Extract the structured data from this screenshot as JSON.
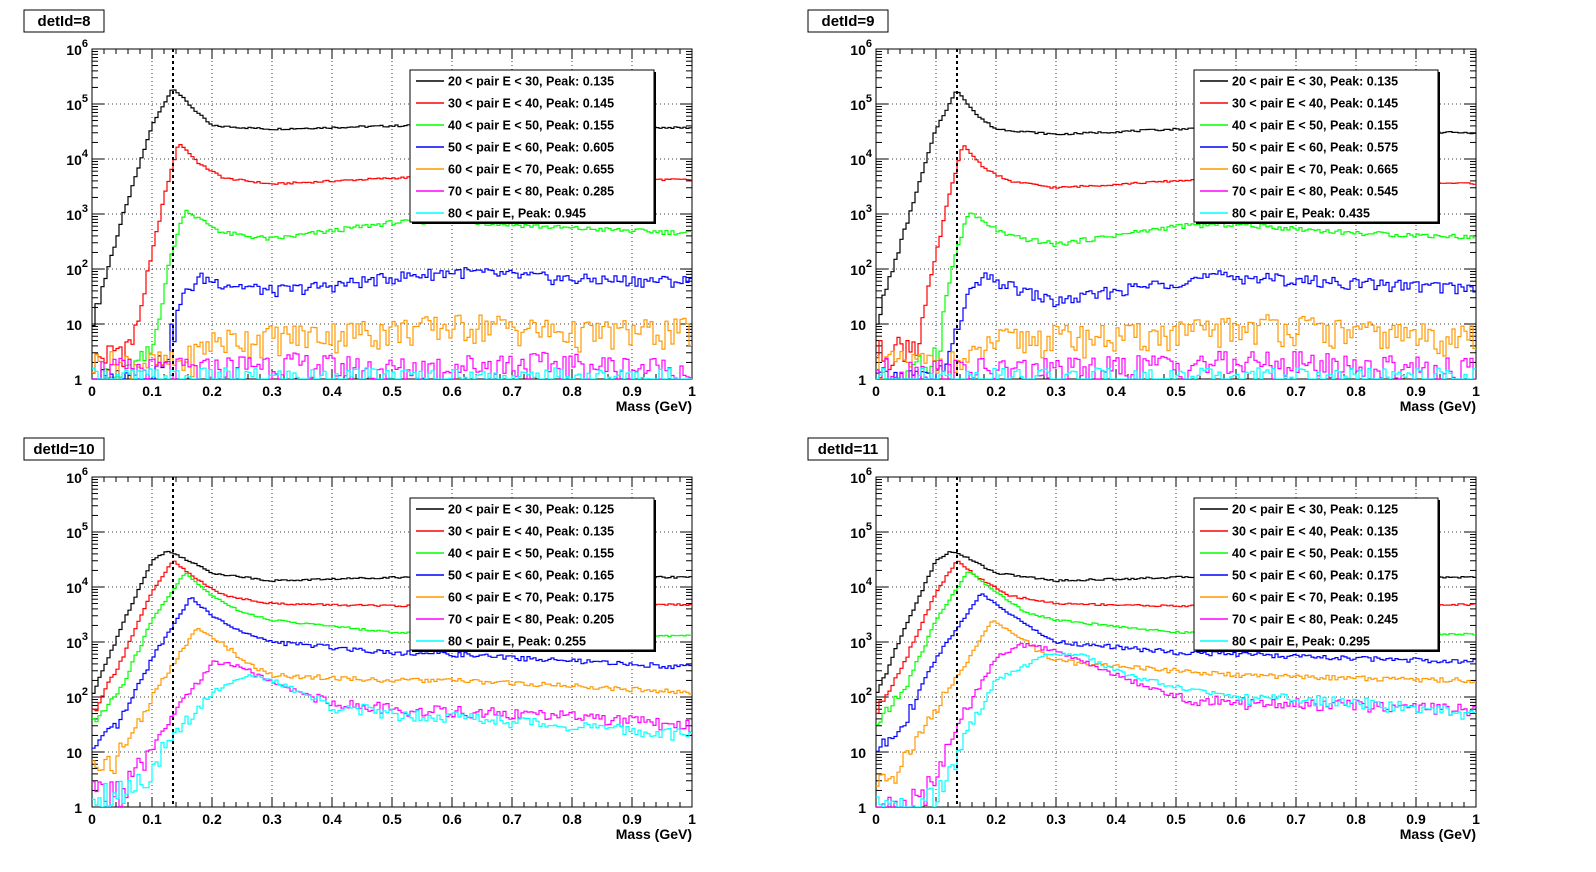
{
  "colors": {
    "black": "#000000",
    "red": "#ff0000",
    "green": "#00ff00",
    "blue": "#0000ff",
    "orange": "#ff9900",
    "magenta": "#ff00ff",
    "cyan": "#00ffff"
  },
  "chart_data": [
    {
      "type": "line",
      "title": "detId=8",
      "xlabel": "Mass (GeV)",
      "xlim": [
        0,
        1
      ],
      "ylim": [
        1,
        1000000
      ],
      "yscale": "log",
      "grid": true,
      "legend_position": "top-right",
      "x_ticks": [
        "0",
        "0.1",
        "0.2",
        "0.3",
        "0.4",
        "0.5",
        "0.6",
        "0.7",
        "0.8",
        "0.9",
        "1"
      ],
      "reference_line_x": 0.135,
      "series": [
        {
          "name": "20 < pair E < 30, Peak: 0.135",
          "color": "black",
          "x": [
            0.0,
            0.05,
            0.1,
            0.135,
            0.17,
            0.2,
            0.3,
            0.5,
            0.6,
            0.8,
            1.0
          ],
          "values": [
            10,
            800,
            40000,
            200000,
            80000,
            40000,
            35000,
            40000,
            42000,
            38000,
            37000
          ]
        },
        {
          "name": "30 < pair E < 40, Peak: 0.145",
          "color": "red",
          "x": [
            0.0,
            0.07,
            0.12,
            0.145,
            0.18,
            0.22,
            0.3,
            0.5,
            0.6,
            0.8,
            1.0
          ],
          "values": [
            2,
            5,
            2000,
            20000,
            8000,
            4500,
            3500,
            4500,
            4800,
            4300,
            4200
          ]
        },
        {
          "name": "40 < pair E < 50, Peak: 0.155",
          "color": "green",
          "x": [
            0.05,
            0.1,
            0.13,
            0.155,
            0.18,
            0.22,
            0.3,
            0.5,
            0.6,
            0.8,
            1.0
          ],
          "values": [
            1,
            3,
            150,
            1200,
            800,
            450,
            350,
            700,
            750,
            550,
            450
          ]
        },
        {
          "name": "50 < pair E < 60, Peak: 0.605",
          "color": "blue",
          "x": [
            0.1,
            0.13,
            0.15,
            0.18,
            0.22,
            0.3,
            0.4,
            0.5,
            0.605,
            0.8,
            1.0
          ],
          "values": [
            1,
            5,
            30,
            70,
            55,
            40,
            50,
            70,
            90,
            65,
            60
          ]
        },
        {
          "name": "60 < pair E < 70, Peak: 0.655",
          "color": "orange",
          "x": [
            0.15,
            0.2,
            0.3,
            0.4,
            0.5,
            0.655,
            0.8,
            1.0
          ],
          "values": [
            2,
            5,
            6,
            7,
            8,
            10,
            7,
            8
          ]
        },
        {
          "name": "70 < pair E < 80, Peak: 0.285",
          "color": "magenta",
          "x": [
            0.2,
            0.285,
            0.5,
            0.7,
            1.0
          ],
          "values": [
            1.5,
            2,
            1.5,
            2,
            1.5
          ]
        },
        {
          "name": "80 < pair E, Peak: 0.945",
          "color": "cyan",
          "x": [
            0.0,
            0.945,
            1.0
          ],
          "values": [
            1,
            1,
            1
          ]
        }
      ]
    },
    {
      "type": "line",
      "title": "detId=9",
      "xlabel": "Mass (GeV)",
      "xlim": [
        0,
        1
      ],
      "ylim": [
        1,
        1000000
      ],
      "yscale": "log",
      "grid": true,
      "legend_position": "top-right",
      "x_ticks": [
        "0",
        "0.1",
        "0.2",
        "0.3",
        "0.4",
        "0.5",
        "0.6",
        "0.7",
        "0.8",
        "0.9",
        "1"
      ],
      "reference_line_x": 0.135,
      "series": [
        {
          "name": "20 < pair E < 30, Peak: 0.135",
          "color": "black",
          "x": [
            0.0,
            0.05,
            0.1,
            0.135,
            0.17,
            0.2,
            0.3,
            0.5,
            0.6,
            0.8,
            1.0
          ],
          "values": [
            10,
            600,
            35000,
            180000,
            60000,
            35000,
            28000,
            35000,
            38000,
            32000,
            30000
          ]
        },
        {
          "name": "30 < pair E < 40, Peak: 0.145",
          "color": "red",
          "x": [
            0.0,
            0.07,
            0.12,
            0.145,
            0.18,
            0.22,
            0.3,
            0.5,
            0.6,
            0.8,
            1.0
          ],
          "values": [
            3,
            5,
            1800,
            18000,
            7000,
            4000,
            3000,
            4000,
            4500,
            3800,
            3600
          ]
        },
        {
          "name": "40 < pair E < 50, Peak: 0.155",
          "color": "green",
          "x": [
            0.05,
            0.1,
            0.13,
            0.155,
            0.18,
            0.22,
            0.3,
            0.5,
            0.6,
            0.8,
            1.0
          ],
          "values": [
            1,
            3,
            150,
            1100,
            700,
            400,
            280,
            600,
            650,
            450,
            380
          ]
        },
        {
          "name": "50 < pair E < 60, Peak: 0.575",
          "color": "blue",
          "x": [
            0.1,
            0.13,
            0.15,
            0.18,
            0.22,
            0.3,
            0.4,
            0.5,
            0.575,
            0.8,
            1.0
          ],
          "values": [
            1,
            4,
            30,
            70,
            50,
            25,
            40,
            60,
            75,
            55,
            45
          ]
        },
        {
          "name": "60 < pair E < 70, Peak: 0.665",
          "color": "orange",
          "x": [
            0.15,
            0.2,
            0.3,
            0.4,
            0.5,
            0.665,
            0.8,
            1.0
          ],
          "values": [
            2,
            5,
            6,
            6,
            7,
            10,
            7,
            6
          ]
        },
        {
          "name": "70 < pair E < 80, Peak: 0.545",
          "color": "magenta",
          "x": [
            0.2,
            0.35,
            0.545,
            0.7,
            1.0
          ],
          "values": [
            1.5,
            1.5,
            2,
            2,
            1.5
          ]
        },
        {
          "name": "80 < pair E, Peak: 0.435",
          "color": "cyan",
          "x": [
            0.0,
            0.435,
            1.0
          ],
          "values": [
            1,
            1,
            1
          ]
        }
      ]
    },
    {
      "type": "line",
      "title": "detId=10",
      "xlabel": "Mass (GeV)",
      "xlim": [
        0,
        1
      ],
      "ylim": [
        1,
        1000000
      ],
      "yscale": "log",
      "grid": true,
      "legend_position": "top-right",
      "x_ticks": [
        "0",
        "0.1",
        "0.2",
        "0.3",
        "0.4",
        "0.5",
        "0.6",
        "0.7",
        "0.8",
        "0.9",
        "1"
      ],
      "reference_line_x": 0.135,
      "series": [
        {
          "name": "20 < pair E < 30, Peak: 0.125",
          "color": "black",
          "x": [
            0.0,
            0.05,
            0.1,
            0.125,
            0.15,
            0.2,
            0.3,
            0.5,
            0.6,
            0.8,
            1.0
          ],
          "values": [
            100,
            2000,
            30000,
            45000,
            35000,
            18000,
            13000,
            15000,
            16000,
            15500,
            15000
          ]
        },
        {
          "name": "30 < pair E < 40, Peak: 0.135",
          "color": "red",
          "x": [
            0.0,
            0.05,
            0.1,
            0.135,
            0.17,
            0.22,
            0.3,
            0.5,
            0.6,
            0.8,
            1.0
          ],
          "values": [
            50,
            500,
            8000,
            30000,
            15000,
            7000,
            5000,
            4500,
            4600,
            4700,
            4800
          ]
        },
        {
          "name": "40 < pair E < 50, Peak: 0.155",
          "color": "green",
          "x": [
            0.0,
            0.05,
            0.1,
            0.155,
            0.2,
            0.25,
            0.3,
            0.5,
            0.6,
            0.8,
            1.0
          ],
          "values": [
            30,
            150,
            2500,
            18000,
            7000,
            3500,
            2500,
            1500,
            1400,
            1300,
            1300
          ]
        },
        {
          "name": "50 < pair E < 60, Peak: 0.165",
          "color": "blue",
          "x": [
            0.0,
            0.05,
            0.1,
            0.165,
            0.2,
            0.25,
            0.3,
            0.5,
            0.6,
            0.8,
            1.0
          ],
          "values": [
            10,
            40,
            500,
            6500,
            3000,
            1500,
            1000,
            650,
            600,
            450,
            350
          ]
        },
        {
          "name": "60 < pair E < 70, Peak: 0.175",
          "color": "orange",
          "x": [
            0.0,
            0.05,
            0.1,
            0.175,
            0.22,
            0.26,
            0.3,
            0.5,
            0.6,
            0.8,
            1.0
          ],
          "values": [
            5,
            10,
            100,
            1800,
            900,
            400,
            250,
            200,
            200,
            160,
            120
          ]
        },
        {
          "name": "70 < pair E < 80, Peak: 0.205",
          "color": "magenta",
          "x": [
            0.05,
            0.1,
            0.15,
            0.205,
            0.25,
            0.3,
            0.4,
            0.5,
            0.6,
            0.8,
            1.0
          ],
          "values": [
            2,
            10,
            80,
            450,
            350,
            180,
            80,
            60,
            55,
            45,
            30
          ]
        },
        {
          "name": "80 < pair E, Peak: 0.255",
          "color": "cyan",
          "x": [
            0.05,
            0.1,
            0.15,
            0.2,
            0.255,
            0.3,
            0.4,
            0.5,
            0.6,
            0.8,
            1.0
          ],
          "values": [
            2,
            5,
            30,
            120,
            250,
            200,
            70,
            50,
            45,
            30,
            20
          ]
        }
      ]
    },
    {
      "type": "line",
      "title": "detId=11",
      "xlabel": "Mass (GeV)",
      "xlim": [
        0,
        1
      ],
      "ylim": [
        1,
        1000000
      ],
      "yscale": "log",
      "grid": true,
      "legend_position": "top-right",
      "x_ticks": [
        "0",
        "0.1",
        "0.2",
        "0.3",
        "0.4",
        "0.5",
        "0.6",
        "0.7",
        "0.8",
        "0.9",
        "1"
      ],
      "reference_line_x": 0.135,
      "series": [
        {
          "name": "20 < pair E < 30, Peak: 0.125",
          "color": "black",
          "x": [
            0.0,
            0.05,
            0.1,
            0.125,
            0.15,
            0.2,
            0.3,
            0.5,
            0.6,
            0.8,
            1.0
          ],
          "values": [
            100,
            2000,
            30000,
            45000,
            35000,
            18000,
            13000,
            15000,
            16000,
            15500,
            15000
          ]
        },
        {
          "name": "30 < pair E < 40, Peak: 0.135",
          "color": "red",
          "x": [
            0.0,
            0.05,
            0.1,
            0.135,
            0.17,
            0.22,
            0.3,
            0.5,
            0.6,
            0.8,
            1.0
          ],
          "values": [
            50,
            500,
            8000,
            30000,
            15000,
            7000,
            5000,
            4500,
            4600,
            4700,
            4800
          ]
        },
        {
          "name": "40 < pair E < 50, Peak: 0.155",
          "color": "green",
          "x": [
            0.0,
            0.05,
            0.1,
            0.155,
            0.2,
            0.25,
            0.3,
            0.5,
            0.6,
            0.8,
            1.0
          ],
          "values": [
            30,
            150,
            2500,
            20000,
            8000,
            3500,
            2500,
            1500,
            1400,
            1400,
            1400
          ]
        },
        {
          "name": "50 < pair E < 60, Peak: 0.175",
          "color": "blue",
          "x": [
            0.0,
            0.05,
            0.1,
            0.175,
            0.22,
            0.27,
            0.3,
            0.5,
            0.6,
            0.8,
            1.0
          ],
          "values": [
            10,
            40,
            500,
            7500,
            3500,
            1500,
            1000,
            650,
            600,
            500,
            450
          ]
        },
        {
          "name": "60 < pair E < 70, Peak: 0.195",
          "color": "orange",
          "x": [
            0.0,
            0.05,
            0.1,
            0.195,
            0.24,
            0.28,
            0.3,
            0.5,
            0.6,
            0.8,
            1.0
          ],
          "values": [
            3,
            8,
            60,
            2500,
            1200,
            600,
            450,
            300,
            250,
            220,
            200
          ]
        },
        {
          "name": "70 < pair E < 80, Peak: 0.245",
          "color": "magenta",
          "x": [
            0.05,
            0.1,
            0.15,
            0.2,
            0.245,
            0.3,
            0.4,
            0.5,
            0.6,
            0.8,
            1.0
          ],
          "values": [
            1,
            3,
            60,
            500,
            900,
            700,
            250,
            100,
            80,
            70,
            60
          ]
        },
        {
          "name": "80 < pair E, Peak: 0.295",
          "color": "cyan",
          "x": [
            0.05,
            0.1,
            0.15,
            0.2,
            0.295,
            0.35,
            0.4,
            0.5,
            0.6,
            0.8,
            1.0
          ],
          "values": [
            1,
            1.5,
            20,
            200,
            650,
            550,
            300,
            150,
            100,
            80,
            50
          ]
        }
      ]
    }
  ]
}
